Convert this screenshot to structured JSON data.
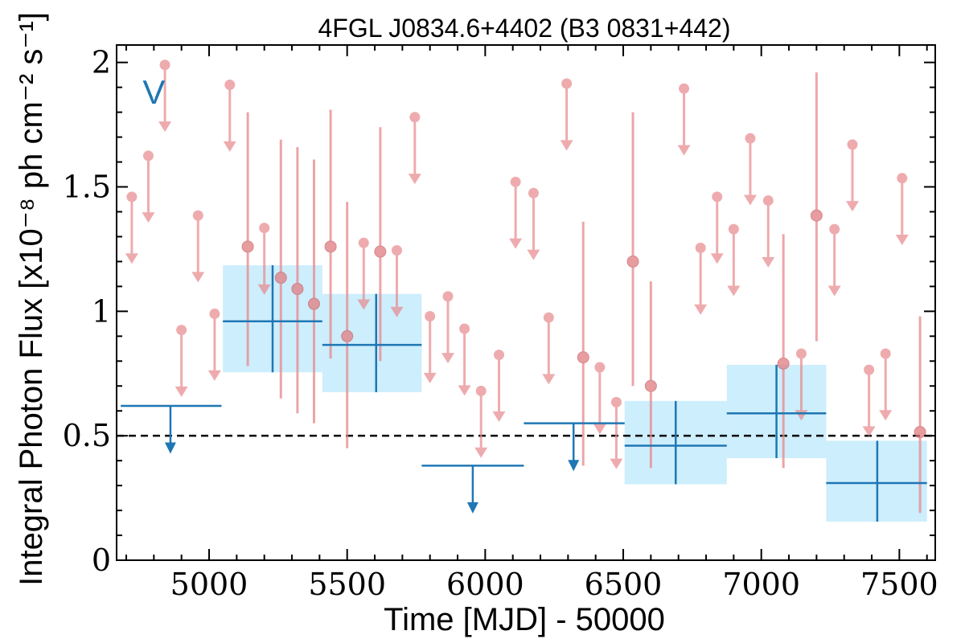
{
  "chart_data": {
    "type": "scatter",
    "title": "4FGL J0834.6+4402 (B3 0831+442)",
    "xlabel": "Time [MJD] - 50000",
    "ylabel": "Integral Photon Flux [x10⁻⁸ ph cm⁻² s⁻¹]",
    "xlim": [
      4665,
      7630
    ],
    "ylim": [
      0,
      2.07
    ],
    "x_ticks": [
      5000,
      5500,
      6000,
      6500,
      7000,
      7500
    ],
    "y_ticks": [
      0,
      0.5,
      1,
      1.5,
      2
    ],
    "y_tick_labels": [
      "0",
      "0.5",
      "1",
      "1.5",
      "2"
    ],
    "reference_line": {
      "y": 0.5,
      "style": "dashed",
      "color": "#000000"
    },
    "annotation": {
      "text": "V",
      "x": 4800,
      "y": 1.88,
      "color": "#1f77b4"
    },
    "colors": {
      "short_bins": "#e8888c",
      "long_bins": "#1f77b4",
      "long_band": "#cdeefc"
    },
    "short_bins": {
      "points": [
        [
          5140,
          1.26,
          0.78,
          1.8
        ],
        [
          5260,
          1.135,
          0.65,
          1.69
        ],
        [
          5320,
          1.09,
          0.59,
          1.66
        ],
        [
          5380,
          1.03,
          0.55,
          1.61
        ],
        [
          5440,
          1.26,
          0.81,
          1.81
        ],
        [
          5500,
          0.9,
          0.45,
          1.44
        ],
        [
          5620,
          1.24,
          0.8,
          1.74
        ],
        [
          6355,
          0.815,
          0.38,
          1.36
        ],
        [
          6535,
          1.2,
          0.7,
          1.8
        ],
        [
          6600,
          0.7,
          0.37,
          1.12
        ],
        [
          7080,
          0.79,
          0.37,
          1.31
        ],
        [
          7200,
          1.385,
          0.88,
          1.96
        ],
        [
          7575,
          0.515,
          0.19,
          0.98
        ]
      ],
      "upper_limits": [
        [
          4720,
          1.46
        ],
        [
          4780,
          1.625
        ],
        [
          4840,
          1.99
        ],
        [
          4900,
          0.925
        ],
        [
          4960,
          1.385
        ],
        [
          5020,
          0.99
        ],
        [
          5075,
          1.91
        ],
        [
          5200,
          1.335
        ],
        [
          5560,
          1.275
        ],
        [
          5680,
          1.245
        ],
        [
          5745,
          1.78
        ],
        [
          5800,
          0.98
        ],
        [
          5865,
          1.06
        ],
        [
          5925,
          0.93
        ],
        [
          5985,
          0.68
        ],
        [
          6050,
          0.825
        ],
        [
          6110,
          1.52
        ],
        [
          6175,
          1.475
        ],
        [
          6230,
          0.975
        ],
        [
          6295,
          1.915
        ],
        [
          6415,
          0.775
        ],
        [
          6475,
          0.635
        ],
        [
          6720,
          1.895
        ],
        [
          6780,
          1.255
        ],
        [
          6840,
          1.46
        ],
        [
          6900,
          1.33
        ],
        [
          6960,
          1.695
        ],
        [
          7025,
          1.445
        ],
        [
          7145,
          0.83
        ],
        [
          7265,
          1.33
        ],
        [
          7330,
          1.67
        ],
        [
          7390,
          0.765
        ],
        [
          7450,
          0.83
        ],
        [
          7510,
          1.535
        ]
      ]
    },
    "long_bins": {
      "points": [
        [
          5230,
          5050,
          5410,
          0.96,
          0.755,
          1.185
        ],
        [
          5605,
          5410,
          5770,
          0.865,
          0.675,
          1.07
        ],
        [
          6690,
          6505,
          6875,
          0.46,
          0.305,
          0.64
        ],
        [
          7055,
          6875,
          7235,
          0.59,
          0.41,
          0.785
        ],
        [
          7420,
          7235,
          7600,
          0.31,
          0.155,
          0.48
        ]
      ],
      "upper_limits": [
        [
          4860,
          4680,
          5045,
          0.62
        ],
        [
          5955,
          5770,
          6140,
          0.38
        ],
        [
          6320,
          6140,
          6505,
          0.55
        ]
      ]
    }
  }
}
